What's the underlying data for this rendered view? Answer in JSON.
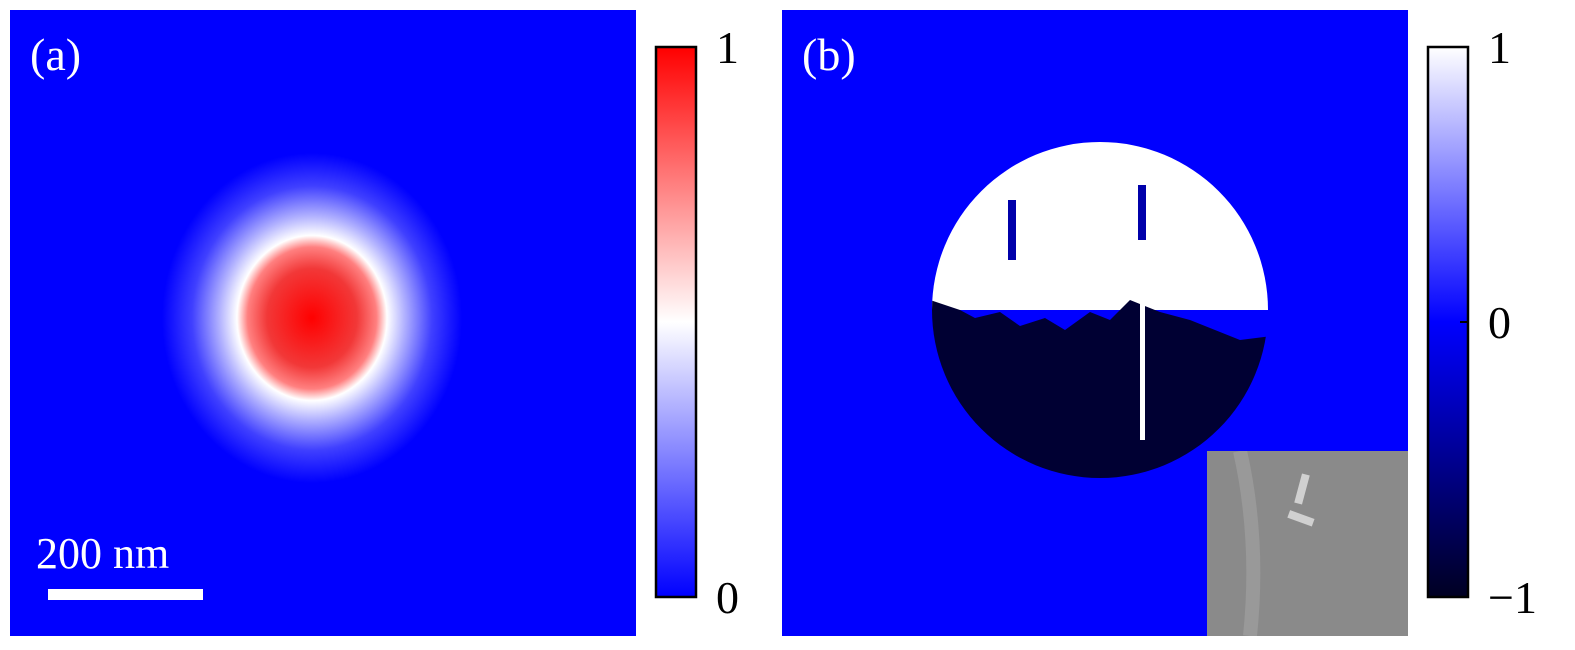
{
  "panels": [
    {
      "label": "(a)",
      "scale_bar": "200 nm",
      "colorbar": {
        "clim": [
          0,
          1
        ],
        "ticks": [
          0,
          1
        ],
        "colors": [
          "#0000ff",
          "#ffffff",
          "#ff0000"
        ]
      }
    },
    {
      "label": "(b)",
      "colorbar": {
        "clim": [
          -1,
          1
        ],
        "ticks": [
          {
            "value": -1,
            "label": "−1"
          },
          0,
          1
        ],
        "colors": [
          "#000022",
          "#0000ff",
          "#ffffff"
        ]
      }
    }
  ]
}
